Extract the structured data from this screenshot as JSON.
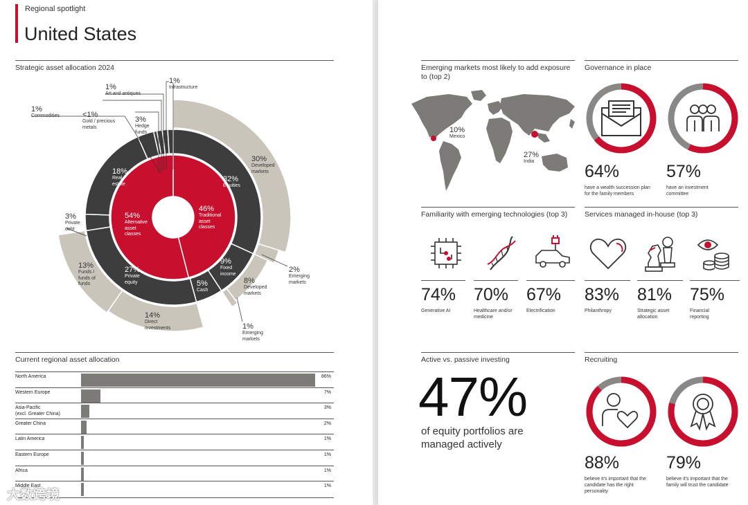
{
  "header": {
    "kicker": "Regional spotlight",
    "title": "United States"
  },
  "strategic": {
    "heading": "Strategic asset allocation 2024",
    "inner": [
      {
        "pct": "46%",
        "label": "Traditional asset classes",
        "value": 46
      },
      {
        "pct": "54%",
        "label": "Alternative asset classes",
        "value": 54
      }
    ],
    "middle": [
      {
        "pct": "32%",
        "label": "Equities",
        "value": 32
      },
      {
        "pct": "9%",
        "label": "Fixed income",
        "value": 9
      },
      {
        "pct": "5%",
        "label": "Cash",
        "value": 5
      },
      {
        "pct": "27%",
        "label": "Private equity",
        "value": 27
      },
      {
        "pct": "3%",
        "label": "Private debt",
        "value": 3
      },
      {
        "pct": "18%",
        "label": "Real estate",
        "value": 18
      },
      {
        "pct": "3%",
        "label": "Hedge funds",
        "value": 3
      },
      {
        "pct": "<1%",
        "label": "Gold / precious metals",
        "value": 0.6
      },
      {
        "pct": "1%",
        "label": "Commodities",
        "value": 1
      },
      {
        "pct": "1%",
        "label": "Art and antiques",
        "value": 1
      },
      {
        "pct": "1%",
        "label": "Infrastructure",
        "value": 1
      }
    ],
    "outer": [
      {
        "pct": "30%",
        "label": "Developed markets",
        "value": 30
      },
      {
        "pct": "2%",
        "label": "Emerging markets",
        "value": 2
      },
      {
        "pct": "8%",
        "label": "Developed markets",
        "value": 8
      },
      {
        "pct": "1%",
        "label": "Emerging markets",
        "value": 1
      },
      {
        "pct": "14%",
        "label": "Direct investments",
        "value": 14
      },
      {
        "pct": "13%",
        "label": "Funds / funds of funds",
        "value": 13
      }
    ]
  },
  "regional": {
    "heading": "Current regional asset allocation",
    "rows": [
      {
        "label": "North America",
        "value": 86,
        "text": "86%"
      },
      {
        "label": "Western Europe",
        "value": 7,
        "text": "7%"
      },
      {
        "label": "Asia-Pacific\n(excl. Greater China)",
        "value": 3,
        "text": "3%"
      },
      {
        "label": "Greater China",
        "value": 2,
        "text": "2%"
      },
      {
        "label": "Latin America",
        "value": 1,
        "text": "1%"
      },
      {
        "label": "Eastern Europe",
        "value": 1,
        "text": "1%"
      },
      {
        "label": "Africa",
        "value": 1,
        "text": "1%"
      },
      {
        "label": "Middle East",
        "value": 1,
        "text": "1%"
      }
    ]
  },
  "emerging": {
    "heading": "Emerging markets most likely to add exposure to (top 2)",
    "mexico": {
      "pct": "10%",
      "label": "Mexico"
    },
    "india": {
      "pct": "27%",
      "label": "India"
    }
  },
  "governance": {
    "heading": "Governance in place",
    "items": [
      {
        "pct": "64%",
        "value": 64,
        "caption": "have a wealth succession plan for the family members",
        "icon": "envelope-icon"
      },
      {
        "pct": "57%",
        "value": 57,
        "caption": "have an investment committee",
        "icon": "committee-icon"
      }
    ]
  },
  "technologies": {
    "heading": "Familiarity with emerging technologies (top 3)",
    "items": [
      {
        "pct": "74%",
        "caption": "Generative AI",
        "icon": "chip-icon"
      },
      {
        "pct": "70%",
        "caption": "Healthcare and/or medicine",
        "icon": "dna-icon"
      },
      {
        "pct": "67%",
        "caption": "Electrification",
        "icon": "electric-car-icon"
      }
    ]
  },
  "services": {
    "heading": "Services managed in-house (top 3)",
    "items": [
      {
        "pct": "83%",
        "caption": "Philanthropy",
        "icon": "heart-icon"
      },
      {
        "pct": "81%",
        "caption": "Strategic asset allocation",
        "icon": "chess-icon"
      },
      {
        "pct": "75%",
        "caption": "Financial reporting",
        "icon": "eye-coins-icon"
      }
    ]
  },
  "active": {
    "heading": "Active vs. passive investing",
    "pct": "47%",
    "caption": "of equity portfolios are managed actively"
  },
  "recruiting": {
    "heading": "Recruiting",
    "items": [
      {
        "pct": "88%",
        "value": 88,
        "caption": "believe it's important that the candidate has the right personality",
        "icon": "person-heart-icon"
      },
      {
        "pct": "79%",
        "value": 79,
        "caption": "believe it's important that the family will trust the candidate",
        "icon": "award-icon"
      }
    ]
  },
  "watermark": "大数跨境",
  "colors": {
    "red": "#c8102e",
    "dark": "#3d3d3d",
    "beige": "#c9c5bb",
    "gray": "#7d7b78",
    "ring_gray": "#8a8886"
  }
}
